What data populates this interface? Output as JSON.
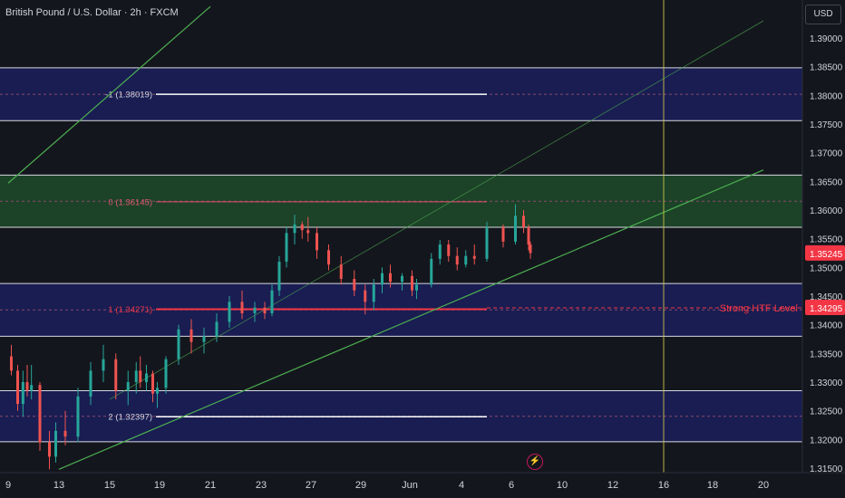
{
  "title": "British Pound / U.S. Dollar · 2h · FXCM",
  "currency": "USD",
  "lightning_icon": "lightning-icon",
  "colors": {
    "background": "#14161d",
    "up": "#26a69a",
    "down": "#ef5350",
    "channel": "#4caf50",
    "zone_blue": "#1a1f5c",
    "zone_green": "#1d4a2a",
    "strong_level": "#f23645",
    "vertical_line": "#c8c44a"
  },
  "chart_data": {
    "type": "candlestick",
    "x_tick_labels": [
      "9",
      "13",
      "15",
      "19",
      "21",
      "23",
      "27",
      "29",
      "Jun",
      "4",
      "6",
      "10",
      "12",
      "16",
      "18",
      "20"
    ],
    "y_tick_labels": [
      "1.39000",
      "1.38500",
      "1.38000",
      "1.37500",
      "1.37000",
      "1.36500",
      "1.36000",
      "1.35500",
      "1.35000",
      "1.34500",
      "1.34000",
      "1.33500",
      "1.33000",
      "1.32500",
      "1.32000",
      "1.31500"
    ],
    "ylim": [
      1.3135,
      1.3935
    ],
    "current_price": "1.35245",
    "strong_level": {
      "label": "Strong HTF Level",
      "value": "1.34295"
    },
    "fib_levels": [
      {
        "label": "-1 (1.38019)",
        "value": 1.38019
      },
      {
        "label": "0 (1.36145)",
        "value": 1.36145
      },
      {
        "label": "1 (1.34271)",
        "value": 1.34271
      },
      {
        "label": "2 (1.32397)",
        "value": 1.32397
      }
    ],
    "zones": [
      {
        "type": "blue",
        "top": 1.3848,
        "bottom": 1.3756
      },
      {
        "type": "green",
        "top": 1.3661,
        "bottom": 1.357
      },
      {
        "type": "blue",
        "top": 1.3472,
        "bottom": 1.338
      },
      {
        "type": "blue",
        "top": 1.3285,
        "bottom": 1.3196
      }
    ],
    "channel_lines": [
      {
        "x1": "9",
        "y1": 1.3647,
        "x2": "21",
        "y2": 1.3955
      },
      {
        "x1": "13",
        "y1": 1.3148,
        "x2": "20",
        "y2": 1.367
      },
      {
        "x1": "15",
        "y1": 1.327,
        "x2": "20",
        "y2": 1.393
      }
    ],
    "vertical_line_x": "16",
    "series": [
      {
        "x": "9",
        "o": 1.3345,
        "h": 1.3365,
        "l": 1.3312,
        "c": 1.332
      },
      {
        "x": "9",
        "o": 1.332,
        "h": 1.333,
        "l": 1.325,
        "c": 1.3262
      },
      {
        "x": "10",
        "o": 1.3262,
        "h": 1.332,
        "l": 1.324,
        "c": 1.33
      },
      {
        "x": "10",
        "o": 1.33,
        "h": 1.333,
        "l": 1.3275,
        "c": 1.3285
      },
      {
        "x": "10",
        "o": 1.3285,
        "h": 1.333,
        "l": 1.327,
        "c": 1.3295
      },
      {
        "x": "11",
        "o": 1.3295,
        "h": 1.33,
        "l": 1.318,
        "c": 1.3195
      },
      {
        "x": "12",
        "o": 1.3195,
        "h": 1.3215,
        "l": 1.3148,
        "c": 1.317
      },
      {
        "x": "12",
        "o": 1.317,
        "h": 1.323,
        "l": 1.316,
        "c": 1.3215
      },
      {
        "x": "13",
        "o": 1.3215,
        "h": 1.325,
        "l": 1.319,
        "c": 1.3205
      },
      {
        "x": "13",
        "o": 1.3205,
        "h": 1.329,
        "l": 1.3195,
        "c": 1.3275
      },
      {
        "x": "14",
        "o": 1.3275,
        "h": 1.3335,
        "l": 1.326,
        "c": 1.332
      },
      {
        "x": "14",
        "o": 1.332,
        "h": 1.3365,
        "l": 1.33,
        "c": 1.334
      },
      {
        "x": "15",
        "o": 1.334,
        "h": 1.335,
        "l": 1.327,
        "c": 1.3285
      },
      {
        "x": "15",
        "o": 1.3285,
        "h": 1.332,
        "l": 1.326,
        "c": 1.33
      },
      {
        "x": "16",
        "o": 1.33,
        "h": 1.3335,
        "l": 1.328,
        "c": 1.332
      },
      {
        "x": "16",
        "o": 1.332,
        "h": 1.3345,
        "l": 1.329,
        "c": 1.33
      },
      {
        "x": "17",
        "o": 1.33,
        "h": 1.333,
        "l": 1.3285,
        "c": 1.3315
      },
      {
        "x": "18",
        "o": 1.3315,
        "h": 1.332,
        "l": 1.3265,
        "c": 1.328
      },
      {
        "x": "18",
        "o": 1.328,
        "h": 1.33,
        "l": 1.3255,
        "c": 1.329
      },
      {
        "x": "19",
        "o": 1.329,
        "h": 1.3345,
        "l": 1.328,
        "c": 1.334
      },
      {
        "x": "19",
        "o": 1.334,
        "h": 1.34,
        "l": 1.333,
        "c": 1.3392
      },
      {
        "x": "20",
        "o": 1.3392,
        "h": 1.341,
        "l": 1.335,
        "c": 1.337
      },
      {
        "x": "20",
        "o": 1.337,
        "h": 1.3395,
        "l": 1.335,
        "c": 1.338
      },
      {
        "x": "21",
        "o": 1.338,
        "h": 1.342,
        "l": 1.337,
        "c": 1.3405
      },
      {
        "x": "21",
        "o": 1.3405,
        "h": 1.345,
        "l": 1.3395,
        "c": 1.344
      },
      {
        "x": "22",
        "o": 1.344,
        "h": 1.346,
        "l": 1.341,
        "c": 1.342
      },
      {
        "x": "22",
        "o": 1.342,
        "h": 1.344,
        "l": 1.3405,
        "c": 1.343
      },
      {
        "x": "23",
        "o": 1.343,
        "h": 1.344,
        "l": 1.341,
        "c": 1.342
      },
      {
        "x": "23",
        "o": 1.342,
        "h": 1.347,
        "l": 1.3415,
        "c": 1.346
      },
      {
        "x": "24",
        "o": 1.346,
        "h": 1.352,
        "l": 1.345,
        "c": 1.351
      },
      {
        "x": "24",
        "o": 1.351,
        "h": 1.357,
        "l": 1.35,
        "c": 1.356
      },
      {
        "x": "25",
        "o": 1.356,
        "h": 1.3592,
        "l": 1.354,
        "c": 1.3575
      },
      {
        "x": "26",
        "o": 1.3575,
        "h": 1.358,
        "l": 1.355,
        "c": 1.3565
      },
      {
        "x": "26",
        "o": 1.3565,
        "h": 1.3588,
        "l": 1.3545,
        "c": 1.356
      },
      {
        "x": "27",
        "o": 1.356,
        "h": 1.357,
        "l": 1.3515,
        "c": 1.353
      },
      {
        "x": "27",
        "o": 1.353,
        "h": 1.354,
        "l": 1.3495,
        "c": 1.3505
      },
      {
        "x": "28",
        "o": 1.3505,
        "h": 1.352,
        "l": 1.347,
        "c": 1.348
      },
      {
        "x": "28",
        "o": 1.348,
        "h": 1.3495,
        "l": 1.345,
        "c": 1.346
      },
      {
        "x": "29",
        "o": 1.346,
        "h": 1.347,
        "l": 1.3418,
        "c": 1.344
      },
      {
        "x": "29",
        "o": 1.344,
        "h": 1.348,
        "l": 1.3425,
        "c": 1.347
      },
      {
        "x": "30",
        "o": 1.347,
        "h": 1.35,
        "l": 1.3455,
        "c": 1.349
      },
      {
        "x": "30",
        "o": 1.349,
        "h": 1.3505,
        "l": 1.3465,
        "c": 1.3475
      },
      {
        "x": "31",
        "o": 1.3475,
        "h": 1.349,
        "l": 1.346,
        "c": 1.3485
      },
      {
        "x": "Jun",
        "o": 1.3485,
        "h": 1.3495,
        "l": 1.345,
        "c": 1.346
      },
      {
        "x": "Jun",
        "o": 1.346,
        "h": 1.348,
        "l": 1.3445,
        "c": 1.347
      },
      {
        "x": "2",
        "o": 1.347,
        "h": 1.3525,
        "l": 1.3465,
        "c": 1.3515
      },
      {
        "x": "2",
        "o": 1.3515,
        "h": 1.3548,
        "l": 1.3505,
        "c": 1.354
      },
      {
        "x": "3",
        "o": 1.354,
        "h": 1.3548,
        "l": 1.351,
        "c": 1.352
      },
      {
        "x": "3",
        "o": 1.352,
        "h": 1.3535,
        "l": 1.3495,
        "c": 1.3505
      },
      {
        "x": "4",
        "o": 1.3505,
        "h": 1.353,
        "l": 1.35,
        "c": 1.352
      },
      {
        "x": "4",
        "o": 1.352,
        "h": 1.354,
        "l": 1.3505,
        "c": 1.3515
      },
      {
        "x": "5",
        "o": 1.3515,
        "h": 1.358,
        "l": 1.351,
        "c": 1.357
      },
      {
        "x": "5",
        "o": 1.357,
        "h": 1.3575,
        "l": 1.3535,
        "c": 1.3545
      },
      {
        "x": "6",
        "o": 1.3545,
        "h": 1.361,
        "l": 1.354,
        "c": 1.359
      },
      {
        "x": "6",
        "o": 1.359,
        "h": 1.36,
        "l": 1.356,
        "c": 1.357
      },
      {
        "x": "7",
        "o": 1.357,
        "h": 1.3575,
        "l": 1.353,
        "c": 1.354
      },
      {
        "x": "7",
        "o": 1.354,
        "h": 1.3545,
        "l": 1.3515,
        "c": 1.3525
      }
    ]
  }
}
